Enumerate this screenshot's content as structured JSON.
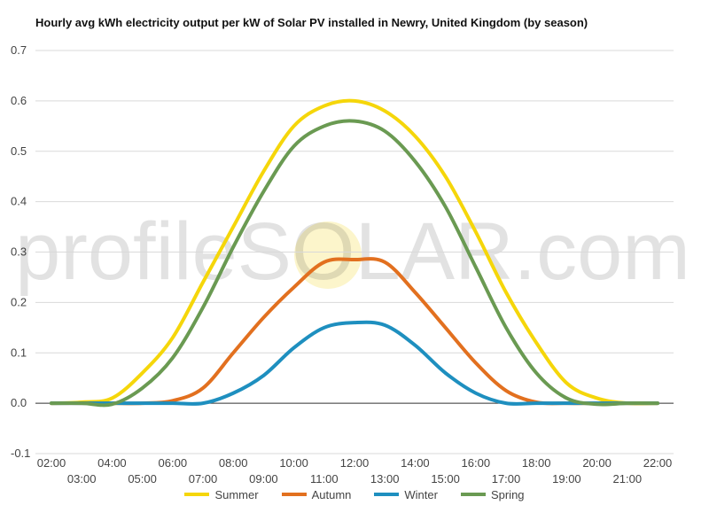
{
  "chart_data": {
    "type": "line",
    "title": "Hourly avg kWh electricity output per kW of Solar PV installed in Newry, United Kingdom (by season)",
    "xlabel": "",
    "ylabel": "",
    "ylim": [
      -0.1,
      0.7
    ],
    "y_ticks": [
      "-0.1",
      "0.0",
      "0.1",
      "0.2",
      "0.3",
      "0.4",
      "0.5",
      "0.6",
      "0.7"
    ],
    "x": [
      "02:00",
      "03:00",
      "04:00",
      "05:00",
      "06:00",
      "07:00",
      "08:00",
      "09:00",
      "10:00",
      "11:00",
      "12:00",
      "13:00",
      "14:00",
      "15:00",
      "16:00",
      "17:00",
      "18:00",
      "19:00",
      "20:00",
      "21:00",
      "22:00"
    ],
    "grid": true,
    "legend_position": "bottom",
    "series": [
      {
        "name": "Summer",
        "color": "#f5d60a",
        "values": [
          0,
          0.002,
          0.01,
          0.06,
          0.13,
          0.24,
          0.35,
          0.46,
          0.55,
          0.59,
          0.6,
          0.58,
          0.53,
          0.45,
          0.34,
          0.22,
          0.12,
          0.04,
          0.01,
          0.0,
          0
        ]
      },
      {
        "name": "Autumn",
        "color": "#e2701f",
        "values": [
          0,
          0,
          0,
          0,
          0.005,
          0.03,
          0.1,
          0.17,
          0.23,
          0.28,
          0.285,
          0.28,
          0.22,
          0.15,
          0.08,
          0.025,
          0.002,
          0,
          0,
          0,
          0
        ]
      },
      {
        "name": "Winter",
        "color": "#1e8fbf",
        "values": [
          0,
          0,
          0,
          0,
          0,
          0,
          0.02,
          0.055,
          0.11,
          0.15,
          0.16,
          0.155,
          0.115,
          0.06,
          0.02,
          0,
          0,
          0,
          0,
          0,
          0
        ]
      },
      {
        "name": "Spring",
        "color": "#6a9a52",
        "values": [
          0,
          0,
          -0.002,
          0.03,
          0.09,
          0.19,
          0.31,
          0.42,
          0.51,
          0.55,
          0.56,
          0.54,
          0.48,
          0.39,
          0.27,
          0.15,
          0.06,
          0.01,
          -0.002,
          0,
          0
        ]
      }
    ]
  },
  "watermark": "profileSOLAR.com"
}
